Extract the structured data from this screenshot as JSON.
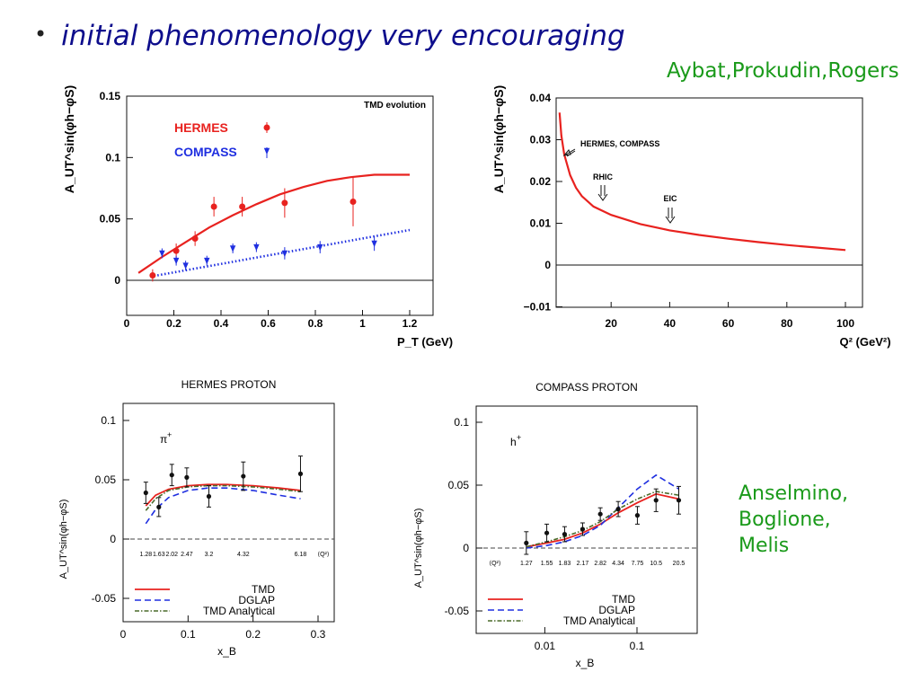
{
  "slide": {
    "bullet": "•",
    "headline": "initial phenomenology very encouraging",
    "credit_top": "Aybat,Prokudin,Rogers",
    "credit_bottom": [
      "Anselmino,",
      "Boglione,",
      "Melis"
    ],
    "colors": {
      "headline": "#0d0d8c",
      "credit": "#1a9a1a",
      "red": "#e8221f",
      "blue": "#1f2fe0",
      "darkgreen": "#4a6a2a"
    }
  },
  "chart_data": [
    {
      "type": "scatter",
      "title": "TMD evolution",
      "xlabel": "P_T (GeV)",
      "ylabel": "A_UT^sin(φh−φS)",
      "xlim": [
        0,
        1.25
      ],
      "ylim": [
        -0.015,
        0.15
      ],
      "xticks": [
        "0",
        "0.2",
        "0.4",
        "0.6",
        "0.8",
        "1",
        "1.2"
      ],
      "yticks": [
        "0",
        "0.05",
        "0.1",
        "0.15"
      ],
      "legend": "top-left",
      "series": [
        {
          "name": "HERMES",
          "marker": "circle",
          "color": "#e8221f",
          "x": [
            0.11,
            0.21,
            0.29,
            0.37,
            0.49,
            0.67,
            0.96
          ],
          "y": [
            0.004,
            0.024,
            0.034,
            0.06,
            0.06,
            0.063,
            0.064
          ],
          "err": [
            0.005,
            0.006,
            0.006,
            0.008,
            0.008,
            0.012,
            0.02
          ]
        },
        {
          "name": "COMPASS",
          "marker": "triangle-down",
          "color": "#1f2fe0",
          "x": [
            0.15,
            0.21,
            0.25,
            0.34,
            0.45,
            0.55,
            0.67,
            0.82,
            1.05
          ],
          "y": [
            0.022,
            0.016,
            0.012,
            0.016,
            0.026,
            0.027,
            0.022,
            0.027,
            0.03
          ],
          "err": [
            0.004,
            0.004,
            0.004,
            0.004,
            0.004,
            0.004,
            0.005,
            0.005,
            0.006
          ]
        },
        {
          "name": "",
          "style": "solid-curve",
          "color": "#e8221f",
          "x": [
            0.05,
            0.15,
            0.25,
            0.35,
            0.45,
            0.55,
            0.65,
            0.75,
            0.85,
            0.95,
            1.05,
            1.15,
            1.2
          ],
          "y": [
            0.006,
            0.019,
            0.031,
            0.043,
            0.053,
            0.062,
            0.07,
            0.076,
            0.081,
            0.084,
            0.086,
            0.086,
            0.086
          ]
        },
        {
          "name": "",
          "style": "dotted-line",
          "color": "#1f2fe0",
          "x": [
            0.1,
            1.2
          ],
          "y": [
            0.003,
            0.041
          ]
        }
      ]
    },
    {
      "type": "line",
      "xlabel": "Q² (GeV²)",
      "ylabel": "A_UT^sin(φh−φS)",
      "xlim": [
        0,
        105
      ],
      "ylim": [
        -0.01,
        0.04
      ],
      "xticks": [
        "20",
        "40",
        "60",
        "80",
        "100"
      ],
      "yticks": [
        "−0.01",
        "0",
        "0.01",
        "0.02",
        "0.03",
        "0.04"
      ],
      "annotations": [
        "HERMES, COMPASS",
        "RHIC",
        "EIC"
      ],
      "series": [
        {
          "name": "",
          "color": "#e8221f",
          "x": [
            2.4,
            3,
            4,
            6,
            8,
            10,
            14,
            20,
            30,
            40,
            50,
            60,
            70,
            80,
            90,
            100
          ],
          "y": [
            0.0365,
            0.031,
            0.0265,
            0.0215,
            0.0185,
            0.0165,
            0.014,
            0.012,
            0.0098,
            0.0083,
            0.0072,
            0.0063,
            0.0055,
            0.0048,
            0.0042,
            0.0036
          ]
        }
      ]
    },
    {
      "type": "line",
      "title": "HERMES PROTON",
      "xlabel": "x_B",
      "ylabel": "A_UT^sin(φh−φS)",
      "xlim": [
        0,
        0.33
      ],
      "ylim": [
        -0.07,
        0.105
      ],
      "xticks": [
        "0",
        "0.1",
        "0.2",
        "0.3"
      ],
      "yticks": [
        "-0.05",
        "0",
        "0.05",
        "0.1"
      ],
      "hadron_label": "π",
      "hadron_charge": "+",
      "q2_label": "⟨Q²⟩",
      "q2_values": [
        "1.28",
        "1.63",
        "2.02",
        "2.47",
        "3.2",
        "4.32",
        "6.18"
      ],
      "legend": "bottom-right",
      "series": [
        {
          "name": "data",
          "marker": "circle",
          "color": "#111111",
          "x": [
            0.035,
            0.055,
            0.075,
            0.098,
            0.132,
            0.185,
            0.273
          ],
          "y": [
            0.039,
            0.027,
            0.054,
            0.052,
            0.036,
            0.053,
            0.055
          ],
          "err": [
            0.009,
            0.008,
            0.009,
            0.008,
            0.009,
            0.012,
            0.015
          ]
        },
        {
          "name": "TMD",
          "style": "solid",
          "color": "#e8221f",
          "x": [
            0.035,
            0.05,
            0.07,
            0.1,
            0.13,
            0.16,
            0.2,
            0.24,
            0.273
          ],
          "y": [
            0.028,
            0.037,
            0.042,
            0.045,
            0.046,
            0.046,
            0.045,
            0.043,
            0.041
          ]
        },
        {
          "name": "DGLAP",
          "style": "dashed",
          "color": "#1f2fe0",
          "x": [
            0.035,
            0.05,
            0.07,
            0.1,
            0.13,
            0.16,
            0.2,
            0.24,
            0.273
          ],
          "y": [
            0.013,
            0.025,
            0.035,
            0.041,
            0.043,
            0.043,
            0.041,
            0.037,
            0.034
          ]
        },
        {
          "name": "TMD Analytical",
          "style": "dash-dot",
          "color": "#4a6a2a",
          "x": [
            0.035,
            0.05,
            0.07,
            0.1,
            0.13,
            0.16,
            0.2,
            0.24,
            0.273
          ],
          "y": [
            0.024,
            0.034,
            0.041,
            0.044,
            0.045,
            0.045,
            0.044,
            0.042,
            0.04
          ]
        }
      ]
    },
    {
      "type": "line",
      "title": "COMPASS PROTON",
      "xlabel": "x_B",
      "ylabel": "A_UT^sin(φh−φS)",
      "xscale": "log",
      "xlim": [
        0.0018,
        0.45
      ],
      "ylim": [
        -0.07,
        0.105
      ],
      "xticks": [
        "0.01",
        "0.1"
      ],
      "yticks": [
        "-0.05",
        "0",
        "0.05",
        "0.1"
      ],
      "hadron_label": "h",
      "hadron_charge": "+",
      "q2_label": "⟨Q²⟩",
      "q2_values": [
        "1.27",
        "1.55",
        "1.83",
        "2.17",
        "2.82",
        "4.34",
        "7.75",
        "10.5",
        "20.5"
      ],
      "legend": "bottom-right",
      "series": [
        {
          "name": "data",
          "marker": "circle",
          "color": "#111111",
          "x": [
            0.0063,
            0.0105,
            0.0164,
            0.0257,
            0.04,
            0.0626,
            0.101,
            0.161,
            0.284
          ],
          "y": [
            0.004,
            0.012,
            0.011,
            0.015,
            0.027,
            0.031,
            0.026,
            0.038,
            0.038
          ],
          "err": [
            0.009,
            0.007,
            0.006,
            0.005,
            0.005,
            0.006,
            0.007,
            0.009,
            0.011
          ]
        },
        {
          "name": "TMD",
          "style": "solid",
          "color": "#e8221f",
          "x": [
            0.0063,
            0.0105,
            0.0164,
            0.0257,
            0.04,
            0.0626,
            0.101,
            0.161,
            0.284
          ],
          "y": [
            0.001,
            0.004,
            0.007,
            0.012,
            0.019,
            0.028,
            0.036,
            0.043,
            0.039
          ]
        },
        {
          "name": "DGLAP",
          "style": "dashed",
          "color": "#1f2fe0",
          "x": [
            0.0063,
            0.0105,
            0.0164,
            0.0257,
            0.04,
            0.0626,
            0.101,
            0.161,
            0.284
          ],
          "y": [
            0.0,
            0.002,
            0.005,
            0.01,
            0.018,
            0.032,
            0.047,
            0.058,
            0.047
          ]
        },
        {
          "name": "TMD Analytical",
          "style": "dash-dot",
          "color": "#4a6a2a",
          "x": [
            0.0063,
            0.0105,
            0.0164,
            0.0257,
            0.04,
            0.0626,
            0.101,
            0.161,
            0.284
          ],
          "y": [
            0.001,
            0.005,
            0.009,
            0.014,
            0.021,
            0.031,
            0.039,
            0.045,
            0.042
          ]
        }
      ]
    }
  ]
}
